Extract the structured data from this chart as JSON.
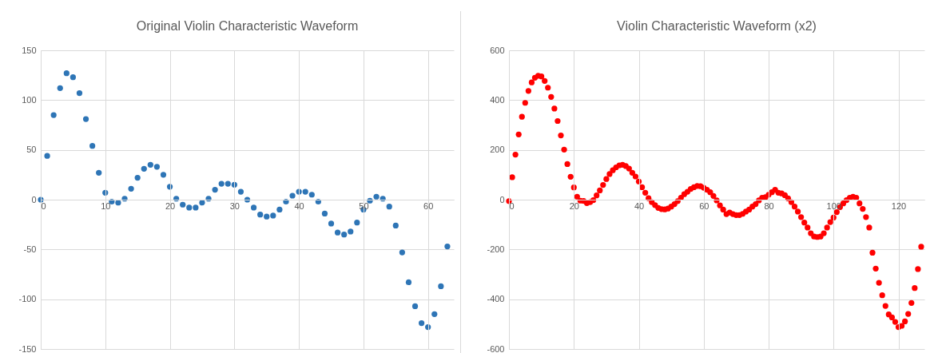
{
  "chart_data": [
    {
      "type": "scatter",
      "title": "Original Violin Characteristic Waveform",
      "xlim": [
        0,
        64
      ],
      "xticks": [
        0,
        10,
        20,
        30,
        40,
        50,
        60
      ],
      "ylim": [
        -150,
        150
      ],
      "yticks": [
        -150,
        -100,
        -50,
        0,
        50,
        100,
        150
      ],
      "grid": true,
      "marker": "circle",
      "x": [
        0,
        1,
        2,
        3,
        4,
        5,
        6,
        7,
        8,
        9,
        10,
        11,
        12,
        13,
        14,
        15,
        16,
        17,
        18,
        19,
        20,
        21,
        22,
        23,
        24,
        25,
        26,
        27,
        28,
        29,
        30,
        31,
        32,
        33,
        34,
        35,
        36,
        37,
        38,
        39,
        40,
        41,
        42,
        43,
        44,
        45,
        46,
        47,
        48,
        49,
        50,
        51,
        52,
        53,
        54,
        55,
        56,
        57,
        58,
        59,
        60,
        61,
        62,
        63
      ],
      "series": [
        {
          "color": "#2e75b6",
          "values": [
            0,
            44,
            85,
            112,
            127,
            123,
            107,
            81,
            54,
            27,
            7,
            -2,
            -3,
            1,
            11,
            22,
            31,
            35,
            33,
            25,
            13,
            1,
            -5,
            -8,
            -8,
            -3,
            1,
            10,
            16,
            16,
            15,
            8,
            0,
            -8,
            -15,
            -17,
            -16,
            -10,
            -2,
            4,
            8,
            8,
            5,
            -2,
            -14,
            -24,
            -33,
            -35,
            -32,
            -23,
            -10,
            -1,
            3,
            1,
            -7,
            -26,
            -53,
            -83,
            -107,
            -124,
            -128,
            -115,
            -87,
            -47
          ]
        }
      ]
    },
    {
      "type": "scatter",
      "title": "Violin Characteristic Waveform (x2)",
      "xlim": [
        0,
        128
      ],
      "xticks": [
        0,
        20,
        40,
        60,
        80,
        100,
        120
      ],
      "ylim": [
        -600,
        600
      ],
      "yticks": [
        -600,
        -400,
        -200,
        0,
        200,
        400,
        600
      ],
      "grid": true,
      "marker": "circle",
      "x": [
        0,
        1,
        2,
        3,
        4,
        5,
        6,
        7,
        8,
        9,
        10,
        11,
        12,
        13,
        14,
        15,
        16,
        17,
        18,
        19,
        20,
        21,
        22,
        23,
        24,
        25,
        26,
        27,
        28,
        29,
        30,
        31,
        32,
        33,
        34,
        35,
        36,
        37,
        38,
        39,
        40,
        41,
        42,
        43,
        44,
        45,
        46,
        47,
        48,
        49,
        50,
        51,
        52,
        53,
        54,
        55,
        56,
        57,
        58,
        59,
        60,
        61,
        62,
        63,
        64,
        65,
        66,
        67,
        68,
        69,
        70,
        71,
        72,
        73,
        74,
        75,
        76,
        77,
        78,
        79,
        80,
        81,
        82,
        83,
        84,
        85,
        86,
        87,
        88,
        89,
        90,
        91,
        92,
        93,
        94,
        95,
        96,
        97,
        98,
        99,
        100,
        101,
        102,
        103,
        104,
        105,
        106,
        107,
        108,
        109,
        110,
        111,
        112,
        113,
        114,
        115,
        116,
        117,
        118,
        119,
        120,
        121,
        122,
        123,
        124,
        125,
        126,
        127
      ],
      "series": [
        {
          "color": "#ff0000",
          "values": [
            -6,
            90,
            181,
            262,
            333,
            389,
            437,
            471,
            490,
            498,
            495,
            477,
            450,
            413,
            366,
            316,
            258,
            201,
            143,
            92,
            49,
            12,
            -4,
            -5,
            -14,
            -10,
            -2,
            17,
            37,
            59,
            83,
            103,
            118,
            130,
            138,
            140,
            135,
            125,
            108,
            93,
            73,
            50,
            28,
            6,
            -10,
            -22,
            -33,
            -38,
            -39,
            -36,
            -28,
            -18,
            -6,
            8,
            22,
            32,
            43,
            50,
            55,
            54,
            48,
            40,
            30,
            15,
            -3,
            -23,
            -40,
            -58,
            -52,
            -58,
            -62,
            -62,
            -57,
            -48,
            -40,
            -28,
            -18,
            -3,
            8,
            10,
            20,
            30,
            40,
            28,
            25,
            18,
            5,
            -10,
            -28,
            -48,
            -70,
            -92,
            -112,
            -135,
            -148,
            -150,
            -148,
            -135,
            -112,
            -90,
            -72,
            -50,
            -30,
            -15,
            -2,
            8,
            12,
            8,
            -15,
            -37,
            -70,
            -112,
            -213,
            -277,
            -334,
            -384,
            -427,
            -461,
            -473,
            -491,
            -512,
            -507,
            -489,
            -459,
            -415,
            -355,
            -279,
            -189
          ]
        }
      ]
    }
  ]
}
